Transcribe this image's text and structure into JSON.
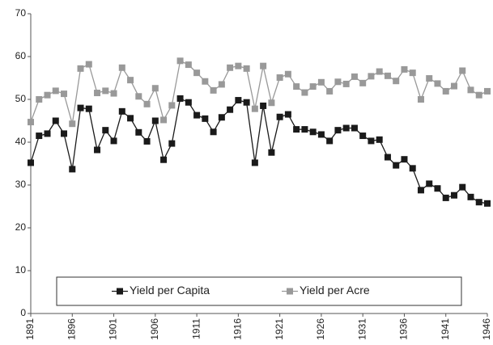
{
  "chart_data": {
    "type": "line",
    "x": [
      1891,
      1892,
      1893,
      1894,
      1895,
      1896,
      1897,
      1898,
      1899,
      1900,
      1901,
      1902,
      1903,
      1904,
      1905,
      1906,
      1907,
      1908,
      1909,
      1910,
      1911,
      1912,
      1913,
      1914,
      1915,
      1916,
      1917,
      1918,
      1919,
      1920,
      1921,
      1922,
      1923,
      1924,
      1925,
      1926,
      1927,
      1928,
      1929,
      1930,
      1931,
      1932,
      1933,
      1934,
      1935,
      1936,
      1937,
      1938,
      1939,
      1940,
      1941,
      1942,
      1943,
      1944,
      1945,
      1946
    ],
    "series": [
      {
        "name": "Yield per Capita",
        "color": "#1a1a1a",
        "values": [
          35.2,
          41.5,
          42,
          45,
          42,
          33.7,
          48,
          47.8,
          38.2,
          42.8,
          40.3,
          47.2,
          45.6,
          42.3,
          40.2,
          45,
          35.9,
          39.7,
          50.2,
          49.3,
          46.3,
          45.5,
          42.4,
          45.8,
          47.6,
          49.8,
          49.3,
          35.2,
          48.5,
          37.6,
          45.9,
          46.5,
          43,
          43,
          42.4,
          41.8,
          40.3,
          42.8,
          43.3,
          43.3,
          41.5,
          40.3,
          40.6,
          36.5,
          34.6,
          36,
          33.9,
          28.8,
          30.3,
          29.2,
          27,
          27.6,
          29.5,
          27.2,
          26,
          25.7
        ]
      },
      {
        "name": "Yield per Acre",
        "color": "#999999",
        "values": [
          44.7,
          50,
          51,
          52,
          51.3,
          44.3,
          57.2,
          58.2,
          51.5,
          52,
          51.4,
          57.4,
          54.5,
          50.7,
          48.9,
          52.6,
          45.2,
          48.6,
          59,
          58.1,
          56.2,
          54.2,
          52.1,
          53.5,
          57.4,
          57.8,
          57.2,
          47.8,
          57.8,
          49.2,
          55.1,
          55.9,
          53,
          51.6,
          53,
          54,
          51.9,
          54.1,
          53.6,
          55.3,
          53.8,
          55.4,
          56.5,
          55.5,
          54.3,
          57,
          56.2,
          50,
          54.9,
          53.7,
          51.9,
          53.1,
          56.7,
          52.2,
          51,
          51.9
        ]
      }
    ],
    "xlim": [
      1891,
      1946
    ],
    "xticks": [
      1891,
      1896,
      1901,
      1906,
      1911,
      1916,
      1921,
      1926,
      1931,
      1936,
      1941,
      1946
    ],
    "ylim": [
      0,
      70
    ],
    "yticks": [
      0,
      10,
      20,
      30,
      40,
      50,
      60,
      70
    ],
    "grid": false,
    "legend_position": "lower center"
  }
}
